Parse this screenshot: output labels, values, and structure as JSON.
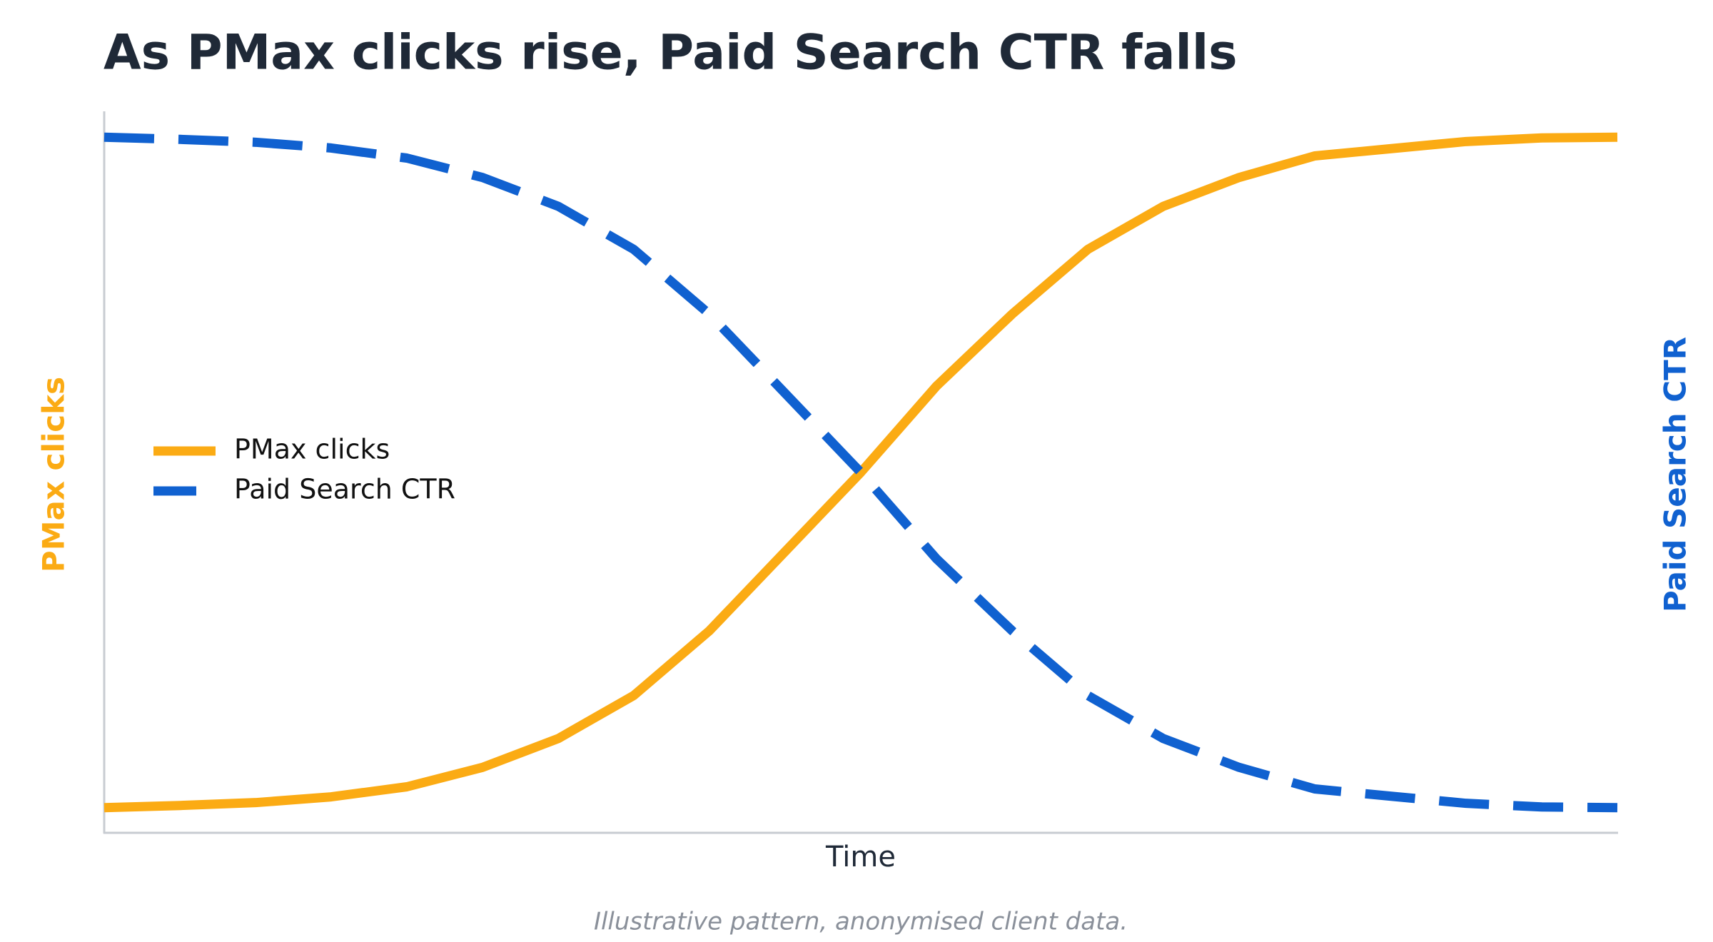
{
  "chart_data": {
    "type": "line",
    "title": "As PMax clicks rise, Paid Search CTR falls",
    "xlabel": "Time",
    "ylabel": "PMax clicks",
    "y2label": "Paid Search CTR",
    "footnote": "Illustrative pattern, anonymised client data.",
    "x": [
      0,
      1,
      2,
      3,
      4,
      5,
      6,
      7,
      8,
      9,
      10,
      11,
      12,
      13,
      14,
      15,
      16,
      17,
      18,
      19,
      20
    ],
    "xlim": [
      0,
      20
    ],
    "ylim": [
      0,
      1
    ],
    "y2lim": [
      0,
      1
    ],
    "legend": "left",
    "series": [
      {
        "name": "PMax clicks",
        "color": "#fbab14",
        "dash": false,
        "values": [
          0.034,
          0.037,
          0.041,
          0.049,
          0.063,
          0.09,
          0.13,
          0.19,
          0.28,
          0.39,
          0.5,
          0.62,
          0.72,
          0.81,
          0.87,
          0.91,
          0.94,
          0.95,
          0.96,
          0.965,
          0.966
        ]
      },
      {
        "name": "Paid Search CTR",
        "color": "#1061d0",
        "dash": true,
        "axis": "y2",
        "values": [
          0.966,
          0.963,
          0.959,
          0.951,
          0.937,
          0.91,
          0.87,
          0.81,
          0.72,
          0.61,
          0.5,
          0.38,
          0.28,
          0.19,
          0.13,
          0.09,
          0.06,
          0.05,
          0.04,
          0.035,
          0.034
        ]
      }
    ]
  }
}
